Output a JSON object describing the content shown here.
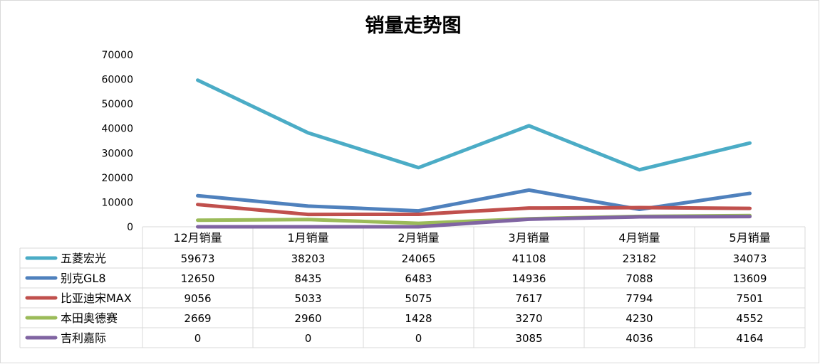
{
  "chart_data": {
    "type": "line",
    "title": "销量走势图",
    "categories": [
      "12月销量",
      "1月销量",
      "2月销量",
      "3月销量",
      "4月销量",
      "5月销量"
    ],
    "ylim": [
      0,
      70000
    ],
    "yticks": [
      "0",
      "10000",
      "20000",
      "30000",
      "40000",
      "50000",
      "60000",
      "70000"
    ],
    "grid": false,
    "legend": "data-table",
    "series": [
      {
        "name": "五菱宏光",
        "color": "#4bacc6",
        "values": [
          59673,
          38203,
          24065,
          41108,
          23182,
          34073
        ]
      },
      {
        "name": "别克GL8",
        "color": "#4f81bd",
        "values": [
          12650,
          8435,
          6483,
          14936,
          7088,
          13609
        ]
      },
      {
        "name": "比亚迪宋MAX",
        "color": "#c0504d",
        "values": [
          9056,
          5033,
          5075,
          7617,
          7794,
          7501
        ]
      },
      {
        "name": "本田奥德赛",
        "color": "#9bbb59",
        "values": [
          2669,
          2960,
          1428,
          3270,
          4230,
          4552
        ]
      },
      {
        "name": "吉利嘉际",
        "color": "#8064a2",
        "values": [
          0,
          0,
          0,
          3085,
          4036,
          4164
        ]
      }
    ]
  }
}
